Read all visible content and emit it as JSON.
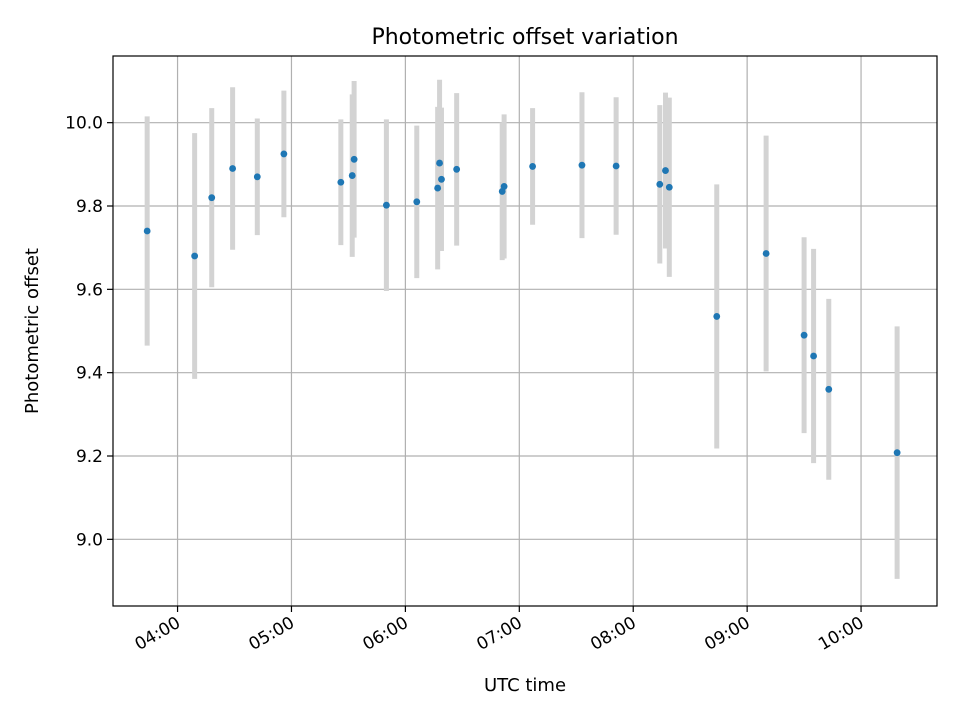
{
  "chart_data": {
    "type": "scatter",
    "title": "Photometric offset variation",
    "xlabel": "UTC time",
    "ylabel": "Photometric offset",
    "grid": true,
    "x_tick_labels": [
      "04:00",
      "05:00",
      "06:00",
      "07:00",
      "08:00",
      "09:00",
      "10:00"
    ],
    "y_tick_labels": [
      "9.0",
      "9.2",
      "9.4",
      "9.6",
      "9.8",
      "10.0"
    ],
    "y_ticks": [
      9.0,
      9.2,
      9.4,
      9.6,
      9.8,
      10.0
    ],
    "xlim": [
      "03:26",
      "10:40"
    ],
    "ylim": [
      8.84,
      10.16
    ],
    "colors": {
      "point": "#1f77b4",
      "errorbar": "#d3d3d3"
    },
    "series": [
      {
        "points": [
          {
            "x": "03:44",
            "y": 9.74,
            "err": 0.275
          },
          {
            "x": "04:09",
            "y": 9.68,
            "err": 0.295
          },
          {
            "x": "04:18",
            "y": 9.82,
            "err": 0.215
          },
          {
            "x": "04:29",
            "y": 9.89,
            "err": 0.195
          },
          {
            "x": "04:42",
            "y": 9.87,
            "err": 0.14
          },
          {
            "x": "04:56",
            "y": 9.925,
            "err": 0.152
          },
          {
            "x": "05:26",
            "y": 9.857,
            "err": 0.151
          },
          {
            "x": "05:32",
            "y": 9.873,
            "err": 0.195
          },
          {
            "x": "05:33",
            "y": 9.912,
            "err": 0.188
          },
          {
            "x": "05:50",
            "y": 9.802,
            "err": 0.206
          },
          {
            "x": "06:06",
            "y": 9.81,
            "err": 0.183
          },
          {
            "x": "06:17",
            "y": 9.843,
            "err": 0.195
          },
          {
            "x": "06:18",
            "y": 9.903,
            "err": 0.2
          },
          {
            "x": "06:19",
            "y": 9.864,
            "err": 0.172
          },
          {
            "x": "06:27",
            "y": 9.888,
            "err": 0.183
          },
          {
            "x": "06:51",
            "y": 9.835,
            "err": 0.165
          },
          {
            "x": "06:52",
            "y": 9.847,
            "err": 0.173
          },
          {
            "x": "07:07",
            "y": 9.895,
            "err": 0.14
          },
          {
            "x": "07:33",
            "y": 9.898,
            "err": 0.175
          },
          {
            "x": "07:51",
            "y": 9.896,
            "err": 0.165
          },
          {
            "x": "08:14",
            "y": 9.852,
            "err": 0.19
          },
          {
            "x": "08:17",
            "y": 9.885,
            "err": 0.187
          },
          {
            "x": "08:19",
            "y": 9.845,
            "err": 0.215
          },
          {
            "x": "08:44",
            "y": 9.535,
            "err": 0.317
          },
          {
            "x": "09:10",
            "y": 9.686,
            "err": 0.283
          },
          {
            "x": "09:30",
            "y": 9.49,
            "err": 0.235
          },
          {
            "x": "09:35",
            "y": 9.44,
            "err": 0.257
          },
          {
            "x": "09:43",
            "y": 9.36,
            "err": 0.217
          },
          {
            "x": "10:19",
            "y": 9.208,
            "err": 0.303
          }
        ]
      }
    ]
  }
}
